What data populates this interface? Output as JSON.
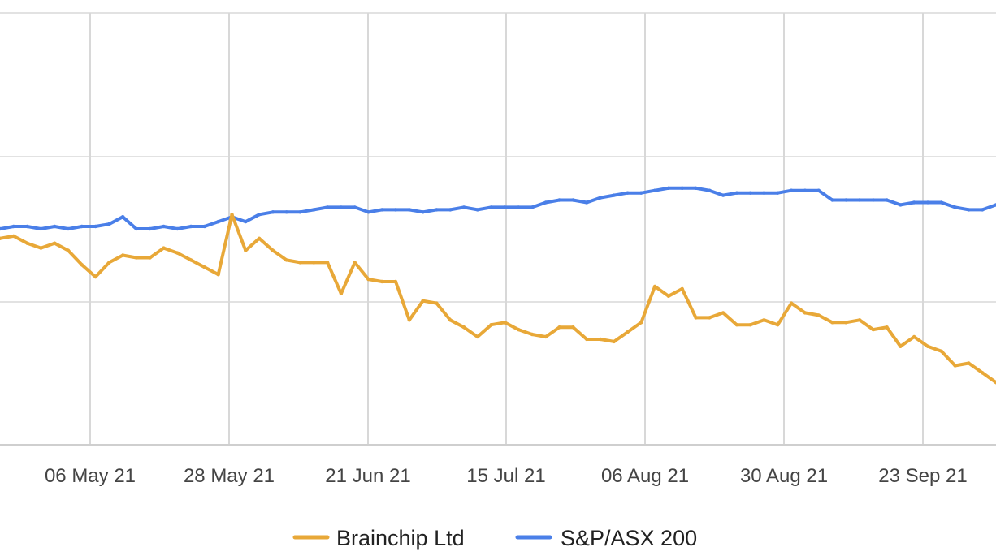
{
  "chart_data": {
    "type": "line",
    "x_tick_labels": [
      "06 May 21",
      "28 May 21",
      "21 Jun 21",
      "15 Jul 21",
      "06 Aug 21",
      "30 Aug 21",
      "23 Sep 21"
    ],
    "grid": true,
    "legend_position": "bottom-center",
    "series": [
      {
        "name": "Brainchip Ltd",
        "color": "#E8A838",
        "x": [
          0,
          1,
          2,
          3,
          4,
          5,
          6,
          7,
          8,
          9,
          10,
          11,
          12,
          13,
          14,
          15,
          16,
          17,
          18,
          19,
          20,
          21,
          22,
          23,
          24,
          25,
          26,
          27,
          28,
          29,
          30,
          31,
          32,
          33,
          34,
          35,
          36,
          37,
          38,
          39,
          40,
          41,
          42,
          43,
          44,
          45,
          46,
          47,
          48,
          49,
          50,
          51,
          52,
          53,
          54,
          55,
          56,
          57,
          58,
          59,
          60,
          61,
          62,
          63,
          64,
          65,
          66,
          67,
          68,
          69,
          70,
          71,
          72,
          73
        ],
        "values": [
          1.06,
          1.07,
          1.04,
          1.02,
          1.04,
          1.01,
          0.95,
          0.9,
          0.96,
          0.99,
          0.98,
          0.98,
          1.02,
          1.0,
          0.97,
          0.94,
          0.91,
          1.16,
          1.01,
          1.06,
          1.01,
          0.97,
          0.96,
          0.96,
          0.96,
          0.83,
          0.96,
          0.89,
          0.88,
          0.88,
          0.72,
          0.8,
          0.79,
          0.72,
          0.69,
          0.65,
          0.7,
          0.71,
          0.68,
          0.66,
          0.65,
          0.69,
          0.69,
          0.64,
          0.64,
          0.63,
          0.67,
          0.71,
          0.86,
          0.82,
          0.85,
          0.73,
          0.73,
          0.75,
          0.7,
          0.7,
          0.72,
          0.7,
          0.79,
          0.75,
          0.74,
          0.71,
          0.71,
          0.72,
          0.68,
          0.69,
          0.61,
          0.65,
          0.61,
          0.59,
          0.53,
          0.54,
          0.5,
          0.46
        ]
      },
      {
        "name": "S&P/ASX 200",
        "color": "#4A7FE8",
        "x": [
          0,
          1,
          2,
          3,
          4,
          5,
          6,
          7,
          8,
          9,
          10,
          11,
          12,
          13,
          14,
          15,
          16,
          17,
          18,
          19,
          20,
          21,
          22,
          23,
          24,
          25,
          26,
          27,
          28,
          29,
          30,
          31,
          32,
          33,
          34,
          35,
          36,
          37,
          38,
          39,
          40,
          41,
          42,
          43,
          44,
          45,
          46,
          47,
          48,
          49,
          50,
          51,
          52,
          53,
          54,
          55,
          56,
          57,
          58,
          59,
          60,
          61,
          62,
          63,
          64,
          65,
          66,
          67,
          68,
          69,
          70,
          71,
          72,
          73
        ],
        "values": [
          1.1,
          1.11,
          1.11,
          1.1,
          1.11,
          1.1,
          1.11,
          1.11,
          1.12,
          1.15,
          1.1,
          1.1,
          1.11,
          1.1,
          1.11,
          1.11,
          1.13,
          1.15,
          1.13,
          1.16,
          1.17,
          1.17,
          1.17,
          1.18,
          1.19,
          1.19,
          1.19,
          1.17,
          1.18,
          1.18,
          1.18,
          1.17,
          1.18,
          1.18,
          1.19,
          1.18,
          1.19,
          1.19,
          1.19,
          1.19,
          1.21,
          1.22,
          1.22,
          1.21,
          1.23,
          1.24,
          1.25,
          1.25,
          1.26,
          1.27,
          1.27,
          1.27,
          1.26,
          1.24,
          1.25,
          1.25,
          1.25,
          1.25,
          1.26,
          1.26,
          1.26,
          1.22,
          1.22,
          1.22,
          1.22,
          1.22,
          1.2,
          1.21,
          1.21,
          1.21,
          1.19,
          1.18,
          1.18,
          1.2
        ]
      }
    ]
  }
}
